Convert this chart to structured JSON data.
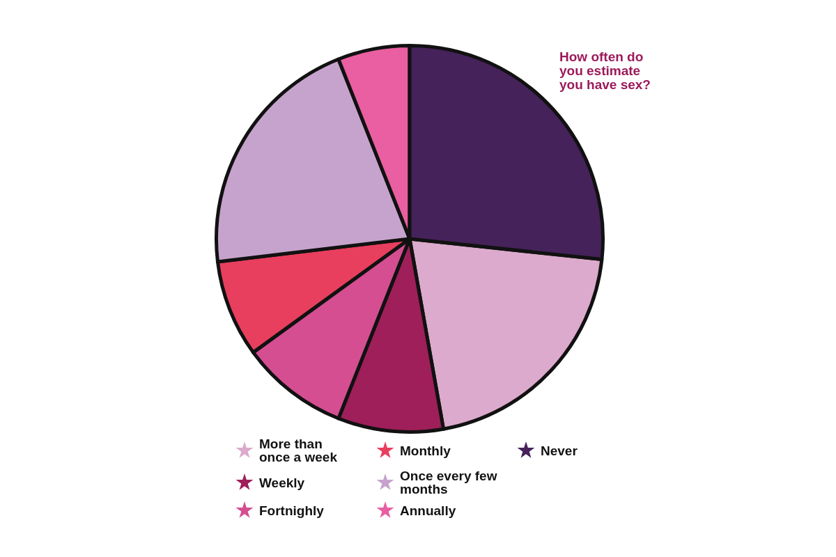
{
  "chart_data": {
    "type": "pie",
    "title": "How often do you estimate you have sex?",
    "categories": [
      "More than once a week",
      "Weekly",
      "Fortnighly",
      "Monthly",
      "Once every few months",
      "Annually",
      "Never"
    ],
    "values": [
      20.5,
      8.8,
      9,
      8.1,
      20.9,
      6,
      26.7
    ],
    "colors": [
      "#dcaacc",
      "#9e1f59",
      "#d44e91",
      "#e83f5e",
      "#c6a3cc",
      "#e95fa1",
      "#45225a"
    ],
    "legend": "bottom"
  }
}
